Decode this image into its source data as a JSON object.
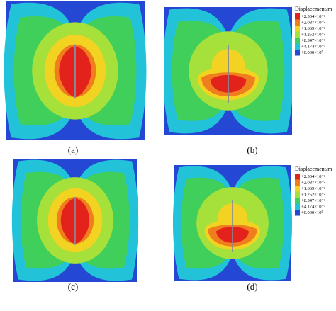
{
  "panels": [
    {
      "label": "(a)"
    },
    {
      "label": "(b)",
      "legend": {
        "title": "Displacement/m",
        "entries": [
          {
            "label": "+2.504×10⁻²",
            "color": "#e3231b"
          },
          {
            "label": "+2.087×10⁻²",
            "color": "#f07d1e"
          },
          {
            "label": "+1.669×10⁻²",
            "color": "#f2d321"
          },
          {
            "label": "+1.252×10⁻²",
            "color": "#a6e03a"
          },
          {
            "label": "+8.347×10⁻³",
            "color": "#3fcf5a"
          },
          {
            "label": "+4.174×10⁻³",
            "color": "#22c3d8"
          },
          {
            "label": "+0.000×10⁰",
            "color": "#2447d4"
          }
        ]
      }
    },
    {
      "label": "(c)"
    },
    {
      "label": "(d)",
      "legend": {
        "title": "Displacement/m",
        "entries": [
          {
            "label": "+2.504×10⁻²",
            "color": "#e3231b"
          },
          {
            "label": "+2.087×10⁻²",
            "color": "#f07d1e"
          },
          {
            "label": "+1.669×10⁻²",
            "color": "#f2d321"
          },
          {
            "label": "+1.252×10⁻²",
            "color": "#a6e03a"
          },
          {
            "label": "+8.347×10⁻³",
            "color": "#3fcf5a"
          },
          {
            "label": "+4.174×10⁻³",
            "color": "#22c3d8"
          },
          {
            "label": "+0.000×10⁰",
            "color": "#2447d4"
          }
        ]
      }
    }
  ]
}
